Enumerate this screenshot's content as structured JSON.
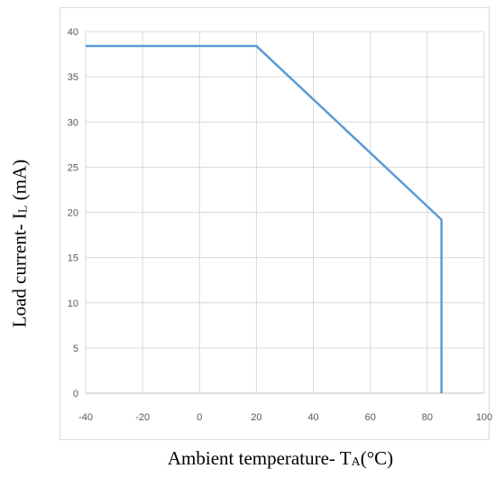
{
  "chart_data": {
    "type": "line",
    "x": [
      -40,
      20,
      85,
      85
    ],
    "series": [
      {
        "values": [
          38.4,
          38.4,
          19.2,
          0
        ]
      }
    ],
    "xlim": [
      -40,
      100
    ],
    "ylim": [
      0,
      40
    ],
    "xticks": [
      -40,
      -20,
      0,
      20,
      40,
      60,
      80,
      100
    ],
    "yticks": [
      0,
      5,
      10,
      15,
      20,
      25,
      30,
      35,
      40
    ],
    "grid": true,
    "colors": {
      "line": "#5b9bd5",
      "grid": "#d9d9d9",
      "axis": "#bfbfbf"
    },
    "xlabel": {
      "main": "Ambient temperature- T",
      "sub": "A",
      "tail": "(°C)"
    },
    "ylabel": {
      "main": "Load current-  I",
      "sub": "L",
      "tail": " (mA)"
    }
  }
}
